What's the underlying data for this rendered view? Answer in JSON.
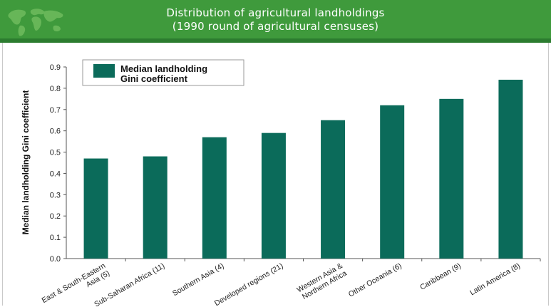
{
  "header": {
    "title_line1": "Distribution of agricultural landholdings",
    "title_line2": "(1990 round of agricultural censuses)"
  },
  "colors": {
    "header_green": "#3f9a3c",
    "bar_teal": "#0b6b5a"
  },
  "icons": {
    "header": "world-map-icon"
  },
  "chart_data": {
    "type": "bar",
    "title": "Distribution of agricultural landholdings (1990 round of agricultural censuses)",
    "ylabel": "Median landholding Gini coefficient",
    "xlabel": "",
    "ylim": [
      0,
      0.9
    ],
    "yticks": [
      "0.0",
      "0.1",
      "0.2",
      "0.3",
      "0.4",
      "0.5",
      "0.6",
      "0.7",
      "0.8",
      "0.9"
    ],
    "grid": false,
    "legend": {
      "position": "top-left",
      "label": [
        "Median landholding",
        "Gini coefficient"
      ]
    },
    "categories": [
      [
        "East & South-Eastern",
        "Asia (5)"
      ],
      [
        "Sub-Saharan Africa (11)"
      ],
      [
        "Southern Asia (4)"
      ],
      [
        "Developed regions (21)"
      ],
      [
        "Western Asia &",
        "Northern Africa"
      ],
      [
        "Other Oceania (6)"
      ],
      [
        "Caribbean (9)"
      ],
      [
        "Latin America (8)"
      ]
    ],
    "series": [
      {
        "name": "Median landholding Gini coefficient",
        "values": [
          0.47,
          0.48,
          0.57,
          0.59,
          0.65,
          0.72,
          0.75,
          0.84
        ]
      }
    ]
  }
}
